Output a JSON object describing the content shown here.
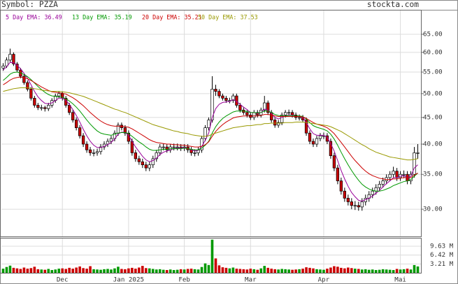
{
  "chart_data": {
    "type": "candlestick",
    "title": "Symbol: PZZA",
    "source": "stockta.com",
    "log_scale": true,
    "grid": true,
    "up_color": "#ffffff",
    "down_color": "#cc0000",
    "x": [
      null,
      null,
      null,
      null,
      null,
      null,
      null,
      null,
      null,
      null,
      null,
      null,
      null,
      null,
      null,
      null,
      null,
      "Dec",
      null,
      null,
      null,
      null,
      null,
      null,
      null,
      null,
      null,
      null,
      null,
      null,
      null,
      null,
      null,
      null,
      null,
      null,
      "Jan 2025",
      null,
      null,
      null,
      null,
      null,
      null,
      null,
      null,
      null,
      null,
      null,
      null,
      null,
      null,
      null,
      "Feb",
      null,
      null,
      null,
      null,
      null,
      null,
      null,
      null,
      null,
      null,
      null,
      null,
      null,
      null,
      null,
      null,
      null,
      null,
      "Mar",
      null,
      null,
      null,
      null,
      null,
      null,
      null,
      null,
      null,
      null,
      null,
      null,
      null,
      null,
      null,
      null,
      null,
      null,
      null,
      null,
      "Apr",
      null,
      null,
      null,
      null,
      null,
      null,
      null,
      null,
      null,
      null,
      null,
      null,
      null,
      null,
      null,
      null,
      null,
      null,
      null,
      null,
      null,
      "Mai",
      null,
      null,
      null,
      null,
      null
    ],
    "open": [
      56,
      56.5,
      58,
      59.5,
      57,
      55.5,
      54,
      52.5,
      51,
      49,
      47.5,
      47,
      47,
      46.8,
      47.5,
      48.5,
      49.5,
      50,
      49,
      47.5,
      46,
      44.5,
      43,
      41.5,
      40,
      39,
      38.5,
      38.5,
      38.7,
      39.5,
      40,
      40.5,
      41,
      42,
      43.5,
      43,
      42,
      40.5,
      38.5,
      37.5,
      37,
      36.5,
      36,
      36.5,
      37.5,
      38.5,
      39.5,
      39.5,
      39,
      39.5,
      39.5,
      39.5,
      39.3,
      39.5,
      39,
      38.5,
      38.5,
      39,
      41,
      43,
      44.5,
      51,
      50.5,
      49.5,
      49,
      48.5,
      48.5,
      49.5,
      47.5,
      46.5,
      46,
      45.5,
      45,
      46,
      45.5,
      46.5,
      48,
      46,
      44.5,
      43.5,
      44,
      45.5,
      46,
      46,
      45.5,
      45,
      45,
      44.5,
      42,
      40.5,
      40,
      41,
      41.5,
      41.5,
      40.5,
      38,
      36,
      34,
      32.5,
      31.5,
      31,
      30.5,
      30.5,
      30.3,
      31,
      31.5,
      32,
      32.5,
      33,
      33.5,
      34,
      34.5,
      35,
      35.5,
      34.5,
      35,
      35,
      34,
      35,
      38.5
    ],
    "high": [
      57.2,
      58.7,
      61,
      60,
      57.5,
      56,
      54.5,
      53,
      51.5,
      49.5,
      48,
      47.6,
      47.4,
      48,
      49,
      50,
      50.6,
      50.5,
      49.5,
      48,
      46.5,
      45,
      43.5,
      42,
      40.5,
      39.5,
      39.1,
      39.2,
      40,
      40.5,
      41,
      41.5,
      42.5,
      44,
      44,
      43.5,
      42.5,
      41,
      39,
      38,
      37.5,
      37,
      37,
      38,
      39,
      40,
      40.1,
      40,
      40,
      40.1,
      40.1,
      40,
      40,
      40,
      39.5,
      39.1,
      39.5,
      41.5,
      43.5,
      45,
      54,
      52,
      51,
      50,
      49.5,
      49.1,
      50,
      50,
      48,
      47,
      46.5,
      46,
      46.5,
      46.5,
      47,
      49.5,
      48.5,
      46.5,
      45,
      44.5,
      46,
      46.5,
      46.6,
      46.5,
      46,
      45.6,
      45.5,
      45,
      42.5,
      41,
      41.5,
      42,
      42.1,
      42,
      41,
      38.5,
      36.5,
      34.5,
      33,
      32,
      31.5,
      31.1,
      31,
      31.5,
      32,
      32.5,
      33,
      33.5,
      34,
      34.5,
      35,
      35.5,
      36.2,
      36,
      35.5,
      35.6,
      35.5,
      35.5,
      39.5,
      40
    ],
    "low": [
      55.3,
      56,
      57.5,
      56.5,
      55,
      53.5,
      52,
      50.5,
      48.5,
      47,
      46.5,
      46.4,
      46.2,
      46.3,
      47,
      48,
      49,
      48.5,
      47,
      45.5,
      44,
      42.5,
      41,
      39.5,
      38.5,
      38,
      37.9,
      38,
      38.2,
      39,
      39.5,
      40,
      40.5,
      41.5,
      42.5,
      41.5,
      40,
      38,
      37,
      36.5,
      36,
      35.5,
      35.5,
      36,
      37,
      38,
      38.9,
      38.5,
      38.5,
      38.9,
      38.9,
      38.8,
      38.8,
      38.5,
      38,
      37.9,
      38,
      38.5,
      40.5,
      42.5,
      44,
      49.5,
      49,
      48.5,
      48,
      47.9,
      48,
      47,
      46,
      45.5,
      45,
      44.5,
      44.5,
      45,
      45,
      46,
      45.5,
      44,
      43,
      43,
      43.5,
      45,
      45.4,
      45,
      44.5,
      44.4,
      44,
      41.5,
      40,
      39.5,
      39.5,
      40.5,
      40.9,
      40,
      37.5,
      35.5,
      33.5,
      32,
      31,
      30.5,
      30,
      29.9,
      29.8,
      29.8,
      30.5,
      31,
      31.5,
      32,
      32.5,
      33,
      33.5,
      34,
      34.5,
      34,
      34,
      34.4,
      33.5,
      33.5,
      34.5,
      37.5
    ],
    "close": [
      56.5,
      58,
      59.5,
      57,
      55.5,
      54,
      52.5,
      51,
      49,
      47.5,
      47,
      47,
      46.8,
      47.5,
      48.5,
      49.5,
      50,
      49,
      47.5,
      46,
      44.5,
      43,
      41.5,
      40,
      39,
      38.5,
      38.5,
      38.7,
      39.5,
      40,
      40.5,
      41,
      42,
      43.5,
      43,
      42,
      40.5,
      38.5,
      37.5,
      37,
      36.5,
      36,
      36.5,
      37.5,
      38.5,
      39.5,
      39.5,
      39,
      39.5,
      39.5,
      39.5,
      39.3,
      39.5,
      39,
      38.5,
      38.5,
      39,
      41,
      43,
      44.5,
      51,
      50.5,
      49.5,
      49,
      48.5,
      48.5,
      49.5,
      47.5,
      46.5,
      46,
      45.5,
      45,
      46,
      45.5,
      46.5,
      48,
      46,
      44.5,
      43.5,
      44,
      45.5,
      46,
      46,
      45.5,
      45,
      45,
      44.5,
      42,
      40.5,
      40,
      41,
      41.5,
      41.5,
      40.5,
      38,
      36,
      34,
      32.5,
      31.5,
      31,
      30.5,
      30.5,
      30.3,
      31,
      31.5,
      32,
      32.5,
      33,
      33.5,
      34,
      34.5,
      35,
      35.5,
      34.5,
      35,
      35,
      34,
      35,
      38.5,
      38.5
    ],
    "series": [
      {
        "name": "5 Day EMA: 36.49",
        "color": "#990099",
        "values": [
          55.5,
          56.3,
          57.4,
          57.3,
          56.7,
          55.8,
          54.7,
          53.5,
          52,
          50.5,
          49.3,
          48.5,
          47.9,
          47.8,
          48,
          48.5,
          49,
          49,
          48.5,
          47.7,
          46.6,
          45.4,
          44.1,
          42.7,
          41.5,
          40.5,
          39.8,
          39.4,
          39.4,
          39.6,
          39.9,
          40.3,
          40.9,
          41.8,
          42.2,
          42.1,
          41.6,
          40.5,
          39.5,
          38.7,
          37.9,
          37.3,
          37,
          37.2,
          37.6,
          38.2,
          38.6,
          38.8,
          39,
          39.2,
          39.3,
          39.3,
          39.4,
          39.2,
          39,
          38.8,
          38.9,
          39.6,
          40.7,
          42,
          45,
          46.8,
          47.7,
          48.1,
          48.2,
          48.3,
          48.7,
          48.3,
          47.7,
          47.1,
          46.6,
          46,
          46,
          45.8,
          46,
          46.7,
          46.5,
          45.8,
          45,
          44.7,
          45,
          45.3,
          45.5,
          45.5,
          45.3,
          45.2,
          45,
          44,
          42.8,
          41.9,
          41.6,
          41.6,
          41.6,
          41.2,
          40.1,
          38.8,
          37.2,
          35.6,
          34.3,
          33.2,
          32.3,
          31.7,
          31.2,
          31.1,
          31.3,
          31.5,
          31.8,
          32.2,
          32.6,
          33.1,
          33.6,
          34,
          34.5,
          34.5,
          34.7,
          34.8,
          34.5,
          34.7,
          36,
          36.5
        ]
      },
      {
        "name": "13 Day EMA: 35.19",
        "color": "#009900",
        "values": [
          53,
          53.7,
          54.5,
          54.9,
          55,
          54.8,
          54.4,
          53.9,
          53.2,
          52.4,
          51.6,
          50.9,
          50.3,
          49.8,
          49.5,
          49.4,
          49.3,
          49.2,
          48.9,
          48.4,
          47.8,
          47.1,
          46.3,
          45.4,
          44.5,
          43.7,
          43,
          42.4,
          42,
          41.8,
          41.7,
          41.6,
          41.8,
          42,
          42.1,
          42.1,
          41.9,
          41.4,
          40.9,
          40.4,
          40,
          39.5,
          39.1,
          38.9,
          38.9,
          39,
          39.1,
          39.1,
          39.2,
          39.2,
          39.2,
          39.2,
          39.3,
          39.2,
          39.1,
          39,
          39,
          39.3,
          39.8,
          40.5,
          42,
          43.2,
          44.1,
          44.8,
          45.3,
          45.7,
          46.1,
          46.3,
          46.3,
          46.3,
          46.2,
          46,
          46,
          45.9,
          46,
          46.3,
          46.3,
          46,
          45.6,
          45.4,
          45.3,
          45.3,
          45.4,
          45.4,
          45.3,
          45.3,
          45.2,
          44.7,
          44,
          43.4,
          43.1,
          42.9,
          42.7,
          42.4,
          41.8,
          40.9,
          39.8,
          38.6,
          37.5,
          36.5,
          35.6,
          34.8,
          34.1,
          33.5,
          33.1,
          32.8,
          32.6,
          32.5,
          32.5,
          32.6,
          32.8,
          33,
          33.3,
          33.5,
          33.7,
          33.9,
          34,
          34.2,
          34.7,
          35.2
        ]
      },
      {
        "name": "20 Day EMA: 35.21",
        "color": "#cc0000",
        "values": [
          52,
          52.5,
          53.1,
          53.5,
          53.7,
          53.8,
          53.6,
          53.4,
          53,
          52.5,
          52,
          51.5,
          51.1,
          50.7,
          50.4,
          50.3,
          50.2,
          50.1,
          49.9,
          49.5,
          49.1,
          48.6,
          48,
          47.4,
          46.7,
          46,
          45.4,
          44.8,
          44.3,
          43.9,
          43.6,
          43.4,
          43.3,
          43.3,
          43.3,
          43.2,
          43.1,
          42.8,
          42.4,
          42,
          41.6,
          41.2,
          40.8,
          40.5,
          40.3,
          40.2,
          40.1,
          40,
          40,
          39.9,
          39.9,
          39.8,
          39.8,
          39.7,
          39.6,
          39.5,
          39.5,
          39.6,
          39.9,
          40.4,
          41.4,
          42.3,
          43,
          43.6,
          44.1,
          44.5,
          44.9,
          45.1,
          45.2,
          45.3,
          45.3,
          45.3,
          45.3,
          45.3,
          45.4,
          45.6,
          45.6,
          45.5,
          45.3,
          45.2,
          45.2,
          45.2,
          45.2,
          45.2,
          45.2,
          45.2,
          45.1,
          44.8,
          44.4,
          44,
          43.7,
          43.5,
          43.3,
          43,
          42.5,
          41.9,
          41.1,
          40.3,
          39.5,
          38.7,
          37.9,
          37.2,
          36.6,
          36,
          35.5,
          35.1,
          34.8,
          34.6,
          34.4,
          34.3,
          34.2,
          34.2,
          34.3,
          34.3,
          34.4,
          34.5,
          34.5,
          34.5,
          34.9,
          35.2
        ]
      },
      {
        "name": "50 Day EMA: 37.53",
        "color": "#999900",
        "values": [
          50.5,
          50.7,
          50.9,
          51.1,
          51.2,
          51.3,
          51.3,
          51.3,
          51.2,
          51.1,
          51,
          50.8,
          50.7,
          50.6,
          50.5,
          50.5,
          50.5,
          50.4,
          50.3,
          50.2,
          50,
          49.8,
          49.6,
          49.4,
          49.1,
          48.8,
          48.5,
          48.2,
          47.9,
          47.6,
          47.3,
          47,
          46.7,
          46.5,
          46.2,
          46,
          45.7,
          45.4,
          45.1,
          44.8,
          44.5,
          44.2,
          43.9,
          43.6,
          43.4,
          43.2,
          43,
          42.8,
          42.6,
          42.4,
          42.3,
          42.1,
          42,
          41.9,
          41.7,
          41.6,
          41.5,
          41.4,
          41.4,
          41.5,
          41.8,
          42,
          42.2,
          42.4,
          42.6,
          42.8,
          43,
          43.1,
          43.2,
          43.3,
          43.4,
          43.4,
          43.5,
          43.6,
          43.6,
          43.8,
          43.8,
          43.9,
          43.9,
          43.9,
          43.9,
          44,
          44,
          44,
          44.1,
          44.1,
          44.1,
          44,
          43.9,
          43.8,
          43.7,
          43.6,
          43.5,
          43.4,
          43.2,
          42.9,
          42.6,
          42.3,
          41.9,
          41.5,
          41.1,
          40.7,
          40.3,
          39.9,
          39.6,
          39.2,
          38.9,
          38.6,
          38.4,
          38.2,
          38,
          37.8,
          37.7,
          37.6,
          37.5,
          37.4,
          37.3,
          37.3,
          37.4,
          37.5
        ]
      }
    ],
    "ylim": [
      26.6,
      72.2
    ],
    "yticks": [
      {
        "value": 30,
        "label": "30.00"
      },
      {
        "value": 35,
        "label": "35.00"
      },
      {
        "value": 40,
        "label": "40.00"
      },
      {
        "value": 45,
        "label": "45.00"
      },
      {
        "value": 50,
        "label": "50.00"
      },
      {
        "value": 55,
        "label": "55.00"
      },
      {
        "value": 60,
        "label": "60.00"
      },
      {
        "value": 65,
        "label": "65.00"
      }
    ],
    "volume": {
      "up_color": "#009900",
      "down_color": "#cc0000",
      "values": [
        1.5,
        2.1,
        2.6,
        1.8,
        1.6,
        1.4,
        1.9,
        1.5,
        1.7,
        2.2,
        1.3,
        1.2,
        1.1,
        1.4,
        1,
        1.2,
        1.5,
        1.6,
        1.4,
        1.8,
        1.5,
        1.9,
        2.3,
        1.7,
        1.5,
        2.4,
        1.3,
        1.2,
        1.1,
        1.3,
        1.4,
        1.2,
        1.6,
        2.2,
        1.4,
        1.3,
        1.6,
        1.8,
        1.5,
        1.9,
        2.5,
        1.7,
        1.6,
        1.4,
        1.2,
        1.3,
        1.1,
        1,
        1.2,
        1,
        1.1,
        1.3,
        1.2,
        1.4,
        1.5,
        1.3,
        1.2,
        2.1,
        3.4,
        2.8,
        12,
        5.2,
        2.7,
        2,
        1.8,
        1.6,
        1.9,
        1.5,
        1.4,
        1.3,
        1.2,
        1.5,
        1.3,
        1.1,
        1.6,
        2.5,
        1.8,
        1.5,
        1.3,
        1.2,
        1.4,
        1.3,
        1.2,
        1.1,
        1.2,
        1.3,
        1.5,
        2,
        1.8,
        1.6,
        1.3,
        1.2,
        1.1,
        1.5,
        1.9,
        2.4,
        2.2,
        1.8,
        1.6,
        1.9,
        1.7,
        1.5,
        1.4,
        1.2,
        1.3,
        1.1,
        1.2,
        1,
        1.1,
        1.3,
        1.2,
        1.1,
        1,
        1.4,
        1.2,
        1.3,
        1.5,
        1.2,
        2.8,
        2.3
      ],
      "ylim": [
        0,
        12.4
      ],
      "yticks": [
        {
          "value": 3.21,
          "label": "3.21 M"
        },
        {
          "value": 6.42,
          "label": "6.42 M"
        },
        {
          "value": 9.63,
          "label": "9.63 M"
        }
      ]
    }
  }
}
